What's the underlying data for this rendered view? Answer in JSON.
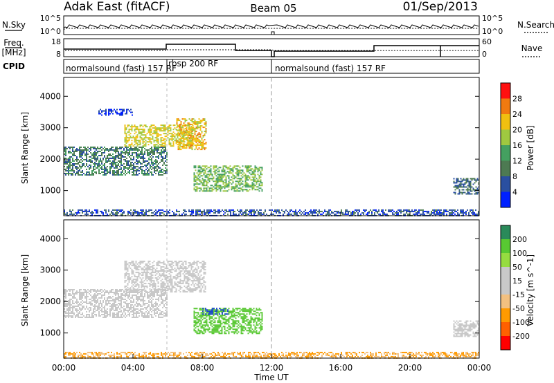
{
  "header": {
    "station": "Adak East (fitACF)",
    "beam": "Beam 05",
    "date": "01/Sep/2013"
  },
  "left_labels": {
    "nsky": "N.Sky",
    "freq": "Freq.",
    "mhz": "[MHz]",
    "cpid": "CPID"
  },
  "right_labels": {
    "nsearch": "N.Search",
    "nave": "Nave"
  },
  "noise_panel": {
    "left_ticks": [
      "10^5",
      "10^0"
    ],
    "right_ticks": [
      "10^5",
      "10^0"
    ]
  },
  "freq_panel": {
    "left_ticks": [
      "18",
      "8"
    ],
    "right_ticks": [
      "60",
      "0"
    ]
  },
  "cpid_segments": [
    {
      "label": "normalsound (fast) 157 RF",
      "start_hour": 0.0,
      "end_hour": 6.0
    },
    {
      "label": "rbsp 200 RF",
      "start_hour": 6.0,
      "end_hour": 12.0
    },
    {
      "label": "normalsound (fast) 157 RF",
      "start_hour": 12.0,
      "end_hour": 24.0
    }
  ],
  "colors": {
    "power_scale": [
      "#0020ff",
      "#2a4fa0",
      "#4d7a52",
      "#44a060",
      "#9fc840",
      "#f0c010",
      "#f07a10",
      "#ff1010"
    ],
    "velocity_scale": [
      "#ff0000",
      "#ff6000",
      "#ff9a00",
      "#f2c080",
      "#c8c8c8",
      "#c8c8c8",
      "#96dc40",
      "#58c832",
      "#2a8a5a",
      "#1a48c8",
      "#0018c0"
    ]
  },
  "chart_data": [
    {
      "type": "heatmap",
      "name": "power",
      "xlabel": "",
      "ylabel": "Slant Range [km]",
      "xlim_hours": [
        0,
        24
      ],
      "ylim": [
        200,
        4600
      ],
      "y_ticks": [
        1000,
        2000,
        3000,
        4000
      ],
      "colorbar": {
        "label": "Power [dB]",
        "range": [
          0,
          32
        ],
        "ticks": [
          4,
          8,
          12,
          16,
          20,
          24,
          28
        ]
      },
      "regions": [
        {
          "x0": 0.0,
          "x1": 6.0,
          "y0": 1500,
          "y1": 2400,
          "value": 10
        },
        {
          "x0": 3.5,
          "x1": 7.5,
          "y0": 2400,
          "y1": 3100,
          "value": 20
        },
        {
          "x0": 6.5,
          "x1": 8.2,
          "y0": 2300,
          "y1": 3300,
          "value": 22
        },
        {
          "x0": 7.5,
          "x1": 11.5,
          "y0": 1000,
          "y1": 1800,
          "value": 16
        },
        {
          "x0": 2.0,
          "x1": 4.0,
          "y0": 3400,
          "y1": 3600,
          "value": 4
        },
        {
          "x0": 22.5,
          "x1": 24.0,
          "y0": 900,
          "y1": 1400,
          "value": 8
        },
        {
          "x0": 0.0,
          "x1": 24.0,
          "y0": 200,
          "y1": 400,
          "value": 6
        }
      ]
    },
    {
      "type": "heatmap",
      "name": "velocity",
      "xlabel": "Time UT",
      "ylabel": "Slant Range [km]",
      "xlim_hours": [
        0,
        24
      ],
      "ylim": [
        200,
        4600
      ],
      "y_ticks": [
        1000,
        2000,
        3000,
        4000
      ],
      "x_ticks": [
        "00:00",
        "04:00",
        "08:00",
        "12:00",
        "16:00",
        "20:00",
        "00:00"
      ],
      "colorbar": {
        "label": "Velocity [m s^-1]",
        "ticks": [
          200,
          100,
          50,
          15,
          -15,
          -50,
          -100,
          -200
        ]
      },
      "regions": [
        {
          "x0": 0.0,
          "x1": 6.0,
          "y0": 1500,
          "y1": 2400,
          "value": 0
        },
        {
          "x0": 3.5,
          "x1": 8.2,
          "y0": 2300,
          "y1": 3300,
          "value": 0
        },
        {
          "x0": 7.5,
          "x1": 11.5,
          "y0": 1000,
          "y1": 1800,
          "value": 60
        },
        {
          "x0": 8.0,
          "x1": 9.5,
          "y0": 1600,
          "y1": 1800,
          "value": 150
        },
        {
          "x0": 0.0,
          "x1": 24.0,
          "y0": 200,
          "y1": 400,
          "value": -50
        },
        {
          "x0": 22.5,
          "x1": 24.0,
          "y0": 900,
          "y1": 1400,
          "value": 0
        }
      ]
    }
  ],
  "colorbar_ticks": {
    "power": [
      "28",
      "24",
      "20",
      "16",
      "12",
      "8",
      "4"
    ],
    "velocity": [
      "200",
      "100",
      "50",
      "15",
      "-15",
      "-50",
      "-100",
      "-200"
    ]
  },
  "axes": {
    "y_ticks": [
      "1000",
      "2000",
      "3000",
      "4000"
    ],
    "x_ticks": [
      "00:00",
      "04:00",
      "08:00",
      "12:00",
      "16:00",
      "20:00",
      "00:00"
    ],
    "xlabel": "Time UT",
    "ylabel": "Slant Range [km]",
    "power_label": "Power [dB]",
    "velocity_label": "Velocity [m s^-1]"
  }
}
